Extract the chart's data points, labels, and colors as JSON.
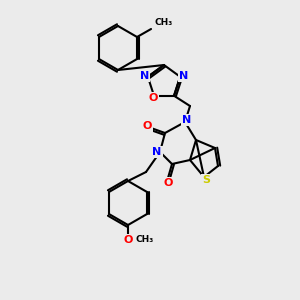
{
  "bg_color": "#ebebeb",
  "bond_color": "#000000",
  "atom_colors": {
    "N": "#0000ff",
    "O": "#ff0000",
    "S": "#cccc00",
    "C": "#000000"
  },
  "line_width": 1.5,
  "font_size": 8
}
